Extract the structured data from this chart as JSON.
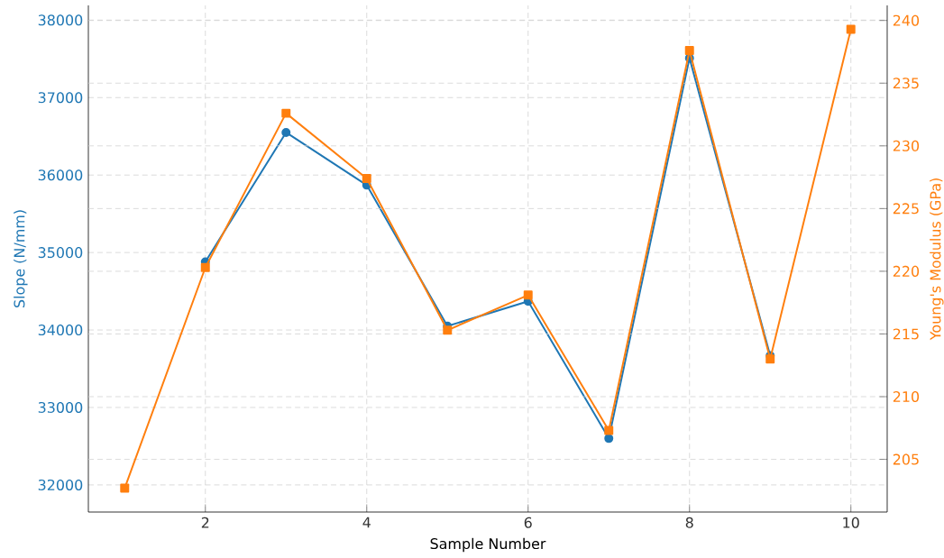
{
  "chart_data": {
    "type": "line",
    "xlabel": "Sample Number",
    "ylabel": "Slope (N/mm)",
    "y2label": "Young's Modulus (GPa)",
    "x": [
      1,
      2,
      3,
      4,
      5,
      6,
      7,
      8,
      9,
      10
    ],
    "xlim": [
      0.55,
      10.45
    ],
    "xticks": [
      2,
      4,
      6,
      8,
      10
    ],
    "ylim": [
      31650,
      38190
    ],
    "yticks": [
      32000,
      33000,
      34000,
      35000,
      36000,
      37000,
      38000
    ],
    "y2lim": [
      200.8,
      241.2
    ],
    "y2ticks": [
      205,
      210,
      215,
      220,
      225,
      230,
      235,
      240
    ],
    "grid": true,
    "line_style": "solid",
    "series": [
      {
        "color": "#1f77b4",
        "marker": "circle",
        "values": [
          null,
          34880,
          36550,
          35870,
          34050,
          34370,
          32600,
          37510,
          33670,
          null
        ]
      },
      {
        "color": "#ff7f0e",
        "marker": "square",
        "axis": "y2",
        "values": [
          202.7,
          220.3,
          232.6,
          227.4,
          215.3,
          218.1,
          207.3,
          237.6,
          213.0,
          239.3
        ]
      }
    ]
  }
}
